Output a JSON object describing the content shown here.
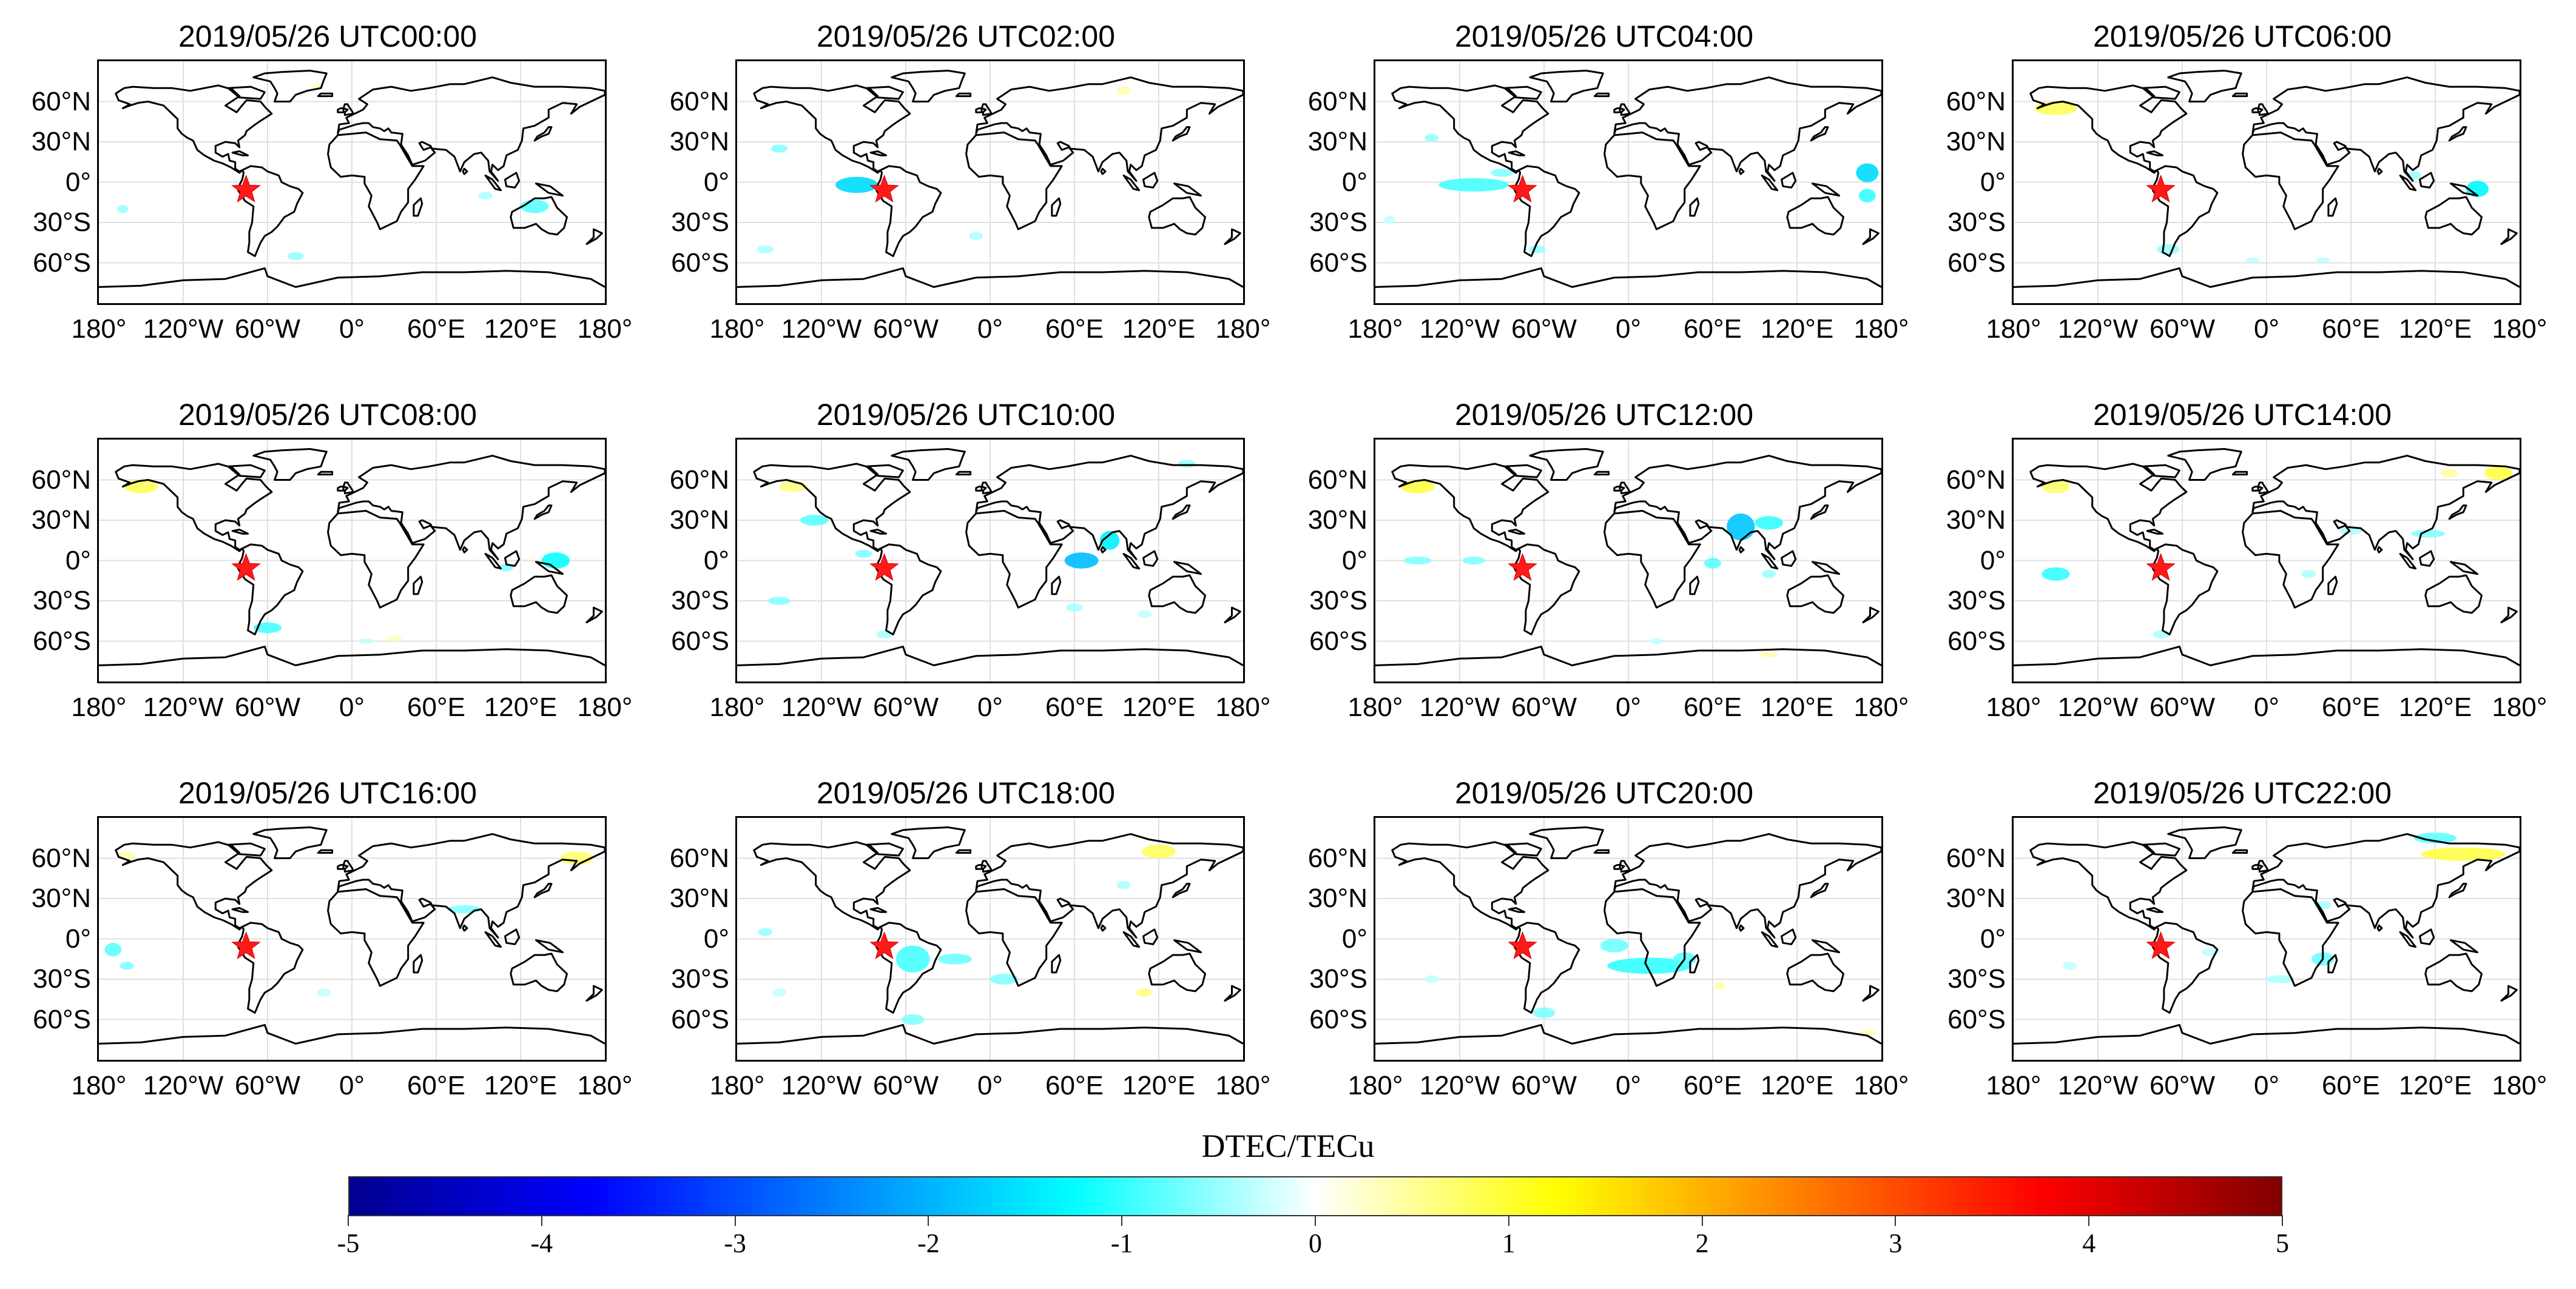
{
  "panels": [
    {
      "title": "2019/05/26 UTC00:00",
      "anomalies": [
        {
          "lon": -163,
          "lat": -20,
          "value": -0.5,
          "rlon": 4,
          "rlat": 3
        },
        {
          "lon": 130,
          "lat": -18,
          "value": -0.8,
          "rlon": 10,
          "rlat": 5
        },
        {
          "lon": 95,
          "lat": -10,
          "value": -0.4,
          "rlon": 5,
          "rlat": 3
        },
        {
          "lon": -40,
          "lat": -55,
          "value": -0.5,
          "rlon": 6,
          "rlat": 3
        },
        {
          "lon": -25,
          "lat": 72,
          "value": 0.3,
          "rlon": 5,
          "rlat": 2
        }
      ]
    },
    {
      "title": "2019/05/26 UTC02:00",
      "anomalies": [
        {
          "lon": -95,
          "lat": -2,
          "value": -1.6,
          "rlon": 15,
          "rlat": 6
        },
        {
          "lon": -150,
          "lat": 25,
          "value": -0.6,
          "rlon": 6,
          "rlat": 3
        },
        {
          "lon": 95,
          "lat": 68,
          "value": 0.4,
          "rlon": 5,
          "rlat": 3
        },
        {
          "lon": -10,
          "lat": -40,
          "value": -0.4,
          "rlon": 5,
          "rlat": 3
        },
        {
          "lon": -160,
          "lat": -50,
          "value": -0.4,
          "rlon": 6,
          "rlat": 3
        }
      ]
    },
    {
      "title": "2019/05/26 UTC04:00",
      "anomalies": [
        {
          "lon": -110,
          "lat": -2,
          "value": -0.9,
          "rlon": 25,
          "rlat": 5
        },
        {
          "lon": -90,
          "lat": 7,
          "value": -0.6,
          "rlon": 8,
          "rlat": 3
        },
        {
          "lon": 170,
          "lat": 7,
          "value": -1.6,
          "rlon": 8,
          "rlat": 7
        },
        {
          "lon": 170,
          "lat": -10,
          "value": -1.0,
          "rlon": 6,
          "rlat": 5
        },
        {
          "lon": -140,
          "lat": 33,
          "value": -0.5,
          "rlon": 5,
          "rlat": 3
        },
        {
          "lon": -170,
          "lat": -28,
          "value": -0.3,
          "rlon": 4,
          "rlat": 3
        },
        {
          "lon": -65,
          "lat": -50,
          "value": -0.5,
          "rlon": 6,
          "rlat": 3
        }
      ]
    },
    {
      "title": "2019/05/26 UTC06:00",
      "anomalies": [
        {
          "lon": -150,
          "lat": 55,
          "value": 0.8,
          "rlon": 15,
          "rlat": 5
        },
        {
          "lon": 150,
          "lat": -5,
          "value": -1.3,
          "rlon": 8,
          "rlat": 6
        },
        {
          "lon": 105,
          "lat": 5,
          "value": -0.5,
          "rlon": 5,
          "rlat": 3
        },
        {
          "lon": -70,
          "lat": -50,
          "value": -0.5,
          "rlon": 8,
          "rlat": 4
        },
        {
          "lon": -10,
          "lat": -58,
          "value": -0.3,
          "rlon": 5,
          "rlat": 2
        },
        {
          "lon": 40,
          "lat": -58,
          "value": -0.3,
          "rlon": 5,
          "rlat": 2
        }
      ]
    },
    {
      "title": "2019/05/26 UTC08:00",
      "anomalies": [
        {
          "lon": -150,
          "lat": 55,
          "value": 0.8,
          "rlon": 12,
          "rlat": 5
        },
        {
          "lon": 145,
          "lat": 0,
          "value": -1.2,
          "rlon": 10,
          "rlat": 6
        },
        {
          "lon": -60,
          "lat": -50,
          "value": -0.9,
          "rlon": 10,
          "rlat": 4
        },
        {
          "lon": 110,
          "lat": -5,
          "value": -0.6,
          "rlon": 5,
          "rlat": 3
        },
        {
          "lon": 30,
          "lat": -58,
          "value": 0.3,
          "rlon": 6,
          "rlat": 2
        },
        {
          "lon": 10,
          "lat": -60,
          "value": -0.3,
          "rlon": 5,
          "rlat": 2
        }
      ]
    },
    {
      "title": "2019/05/26 UTC10:00",
      "anomalies": [
        {
          "lon": 65,
          "lat": 0,
          "value": -1.9,
          "rlon": 12,
          "rlat": 6
        },
        {
          "lon": 85,
          "lat": 15,
          "value": -1.4,
          "rlon": 7,
          "rlat": 7
        },
        {
          "lon": -125,
          "lat": 30,
          "value": -0.8,
          "rlon": 10,
          "rlat": 4
        },
        {
          "lon": -150,
          "lat": -30,
          "value": -0.6,
          "rlon": 8,
          "rlat": 3
        },
        {
          "lon": -140,
          "lat": 55,
          "value": 0.6,
          "rlon": 10,
          "rlat": 4
        },
        {
          "lon": -90,
          "lat": 5,
          "value": -0.6,
          "rlon": 6,
          "rlat": 3
        },
        {
          "lon": 140,
          "lat": 72,
          "value": -0.5,
          "rlon": 6,
          "rlat": 3
        },
        {
          "lon": 60,
          "lat": -35,
          "value": -0.4,
          "rlon": 6,
          "rlat": 3
        },
        {
          "lon": 110,
          "lat": -40,
          "value": -0.3,
          "rlon": 5,
          "rlat": 3
        },
        {
          "lon": -75,
          "lat": -55,
          "value": -0.4,
          "rlon": 6,
          "rlat": 3
        }
      ]
    },
    {
      "title": "2019/05/26 UTC12:00",
      "anomalies": [
        {
          "lon": 80,
          "lat": 25,
          "value": -1.8,
          "rlon": 10,
          "rlat": 10
        },
        {
          "lon": 100,
          "lat": 28,
          "value": -1.0,
          "rlon": 10,
          "rlat": 5
        },
        {
          "lon": 60,
          "lat": -2,
          "value": -0.8,
          "rlon": 6,
          "rlat": 4
        },
        {
          "lon": -150,
          "lat": 55,
          "value": 0.9,
          "rlon": 12,
          "rlat": 5
        },
        {
          "lon": -150,
          "lat": 0,
          "value": -0.6,
          "rlon": 10,
          "rlat": 3
        },
        {
          "lon": -110,
          "lat": 0,
          "value": -0.6,
          "rlon": 8,
          "rlat": 3
        },
        {
          "lon": 100,
          "lat": -10,
          "value": -0.5,
          "rlon": 5,
          "rlat": 3
        },
        {
          "lon": 100,
          "lat": -70,
          "value": 0.4,
          "rlon": 6,
          "rlat": 2
        },
        {
          "lon": 20,
          "lat": -60,
          "value": -0.3,
          "rlon": 5,
          "rlat": 2
        }
      ]
    },
    {
      "title": "2019/05/26 UTC14:00",
      "anomalies": [
        {
          "lon": -150,
          "lat": -10,
          "value": -1.0,
          "rlon": 10,
          "rlat": 5
        },
        {
          "lon": -150,
          "lat": 55,
          "value": 0.7,
          "rlon": 10,
          "rlat": 5
        },
        {
          "lon": 165,
          "lat": 65,
          "value": 0.9,
          "rlon": 10,
          "rlat": 5
        },
        {
          "lon": 130,
          "lat": 65,
          "value": 0.5,
          "rlon": 6,
          "rlat": 3
        },
        {
          "lon": 115,
          "lat": 20,
          "value": -0.6,
          "rlon": 12,
          "rlat": 3
        },
        {
          "lon": 60,
          "lat": 22,
          "value": -0.4,
          "rlon": 8,
          "rlat": 3
        },
        {
          "lon": -75,
          "lat": -55,
          "value": -0.4,
          "rlon": 6,
          "rlat": 3
        },
        {
          "lon": 30,
          "lat": -10,
          "value": -0.4,
          "rlon": 5,
          "rlat": 3
        }
      ]
    },
    {
      "title": "2019/05/26 UTC16:00",
      "anomalies": [
        {
          "lon": -170,
          "lat": -8,
          "value": -0.8,
          "rlon": 6,
          "rlat": 5
        },
        {
          "lon": -160,
          "lat": -20,
          "value": -0.6,
          "rlon": 5,
          "rlat": 3
        },
        {
          "lon": 160,
          "lat": 60,
          "value": 0.7,
          "rlon": 12,
          "rlat": 5
        },
        {
          "lon": 80,
          "lat": 22,
          "value": -0.6,
          "rlon": 12,
          "rlat": 3
        },
        {
          "lon": -160,
          "lat": 62,
          "value": 0.4,
          "rlon": 6,
          "rlat": 3
        },
        {
          "lon": -20,
          "lat": -40,
          "value": -0.3,
          "rlon": 5,
          "rlat": 3
        }
      ]
    },
    {
      "title": "2019/05/26 UTC18:00",
      "anomalies": [
        {
          "lon": -55,
          "lat": -15,
          "value": -0.9,
          "rlon": 12,
          "rlat": 10
        },
        {
          "lon": -25,
          "lat": -15,
          "value": -0.7,
          "rlon": 12,
          "rlat": 4
        },
        {
          "lon": 10,
          "lat": -30,
          "value": -0.6,
          "rlon": 10,
          "rlat": 4
        },
        {
          "lon": 120,
          "lat": 65,
          "value": 0.8,
          "rlon": 12,
          "rlat": 5
        },
        {
          "lon": 95,
          "lat": 40,
          "value": -0.4,
          "rlon": 5,
          "rlat": 3
        },
        {
          "lon": 110,
          "lat": -40,
          "value": 0.6,
          "rlon": 6,
          "rlat": 3
        },
        {
          "lon": -160,
          "lat": 5,
          "value": -0.5,
          "rlon": 5,
          "rlat": 3
        },
        {
          "lon": -55,
          "lat": -60,
          "value": -0.6,
          "rlon": 8,
          "rlat": 4
        },
        {
          "lon": -150,
          "lat": -40,
          "value": -0.3,
          "rlon": 5,
          "rlat": 3
        }
      ]
    },
    {
      "title": "2019/05/26 UTC20:00",
      "anomalies": [
        {
          "lon": 15,
          "lat": -20,
          "value": -1.0,
          "rlon": 30,
          "rlat": 6
        },
        {
          "lon": -10,
          "lat": -5,
          "value": -0.7,
          "rlon": 10,
          "rlat": 5
        },
        {
          "lon": 40,
          "lat": -15,
          "value": -0.8,
          "rlon": 8,
          "rlat": 5
        },
        {
          "lon": -60,
          "lat": -55,
          "value": -0.6,
          "rlon": 8,
          "rlat": 4
        },
        {
          "lon": 65,
          "lat": -35,
          "value": 0.4,
          "rlon": 4,
          "rlat": 3
        },
        {
          "lon": 170,
          "lat": -70,
          "value": 0.4,
          "rlon": 6,
          "rlat": 2
        },
        {
          "lon": -140,
          "lat": -30,
          "value": -0.3,
          "rlon": 5,
          "rlat": 3
        }
      ]
    },
    {
      "title": "2019/05/26 UTC22:00",
      "anomalies": [
        {
          "lon": 140,
          "lat": 63,
          "value": 0.9,
          "rlon": 30,
          "rlat": 5
        },
        {
          "lon": 120,
          "lat": 75,
          "value": -0.8,
          "rlon": 15,
          "rlat": 4
        },
        {
          "lon": 40,
          "lat": -15,
          "value": -0.7,
          "rlon": 8,
          "rlat": 5
        },
        {
          "lon": 10,
          "lat": -30,
          "value": -0.4,
          "rlon": 10,
          "rlat": 3
        },
        {
          "lon": 40,
          "lat": 25,
          "value": -0.4,
          "rlon": 6,
          "rlat": 3
        },
        {
          "lon": -40,
          "lat": -10,
          "value": -0.3,
          "rlon": 6,
          "rlat": 3
        },
        {
          "lon": -140,
          "lat": -20,
          "value": -0.3,
          "rlon": 5,
          "rlat": 3
        }
      ]
    }
  ],
  "epicenter": {
    "lon": -75.3,
    "lat": -5.8,
    "color": "#ff1a1a"
  },
  "map": {
    "lon_range": [
      -180,
      180
    ],
    "lat_range": [
      -90,
      90
    ],
    "grid": true,
    "land_fill": "none",
    "coast_color": "#000000"
  },
  "lat_ticks": [
    {
      "value": 60,
      "label": "60°N"
    },
    {
      "value": 30,
      "label": "30°N"
    },
    {
      "value": 0,
      "label": "0°"
    },
    {
      "value": -30,
      "label": "30°S"
    },
    {
      "value": -60,
      "label": "60°S"
    }
  ],
  "lon_ticks": [
    {
      "value": -180,
      "label": "180°"
    },
    {
      "value": -120,
      "label": "120°W"
    },
    {
      "value": -60,
      "label": "60°W"
    },
    {
      "value": 0,
      "label": "0°"
    },
    {
      "value": 60,
      "label": "60°E"
    },
    {
      "value": 120,
      "label": "120°E"
    },
    {
      "value": 180,
      "label": "180°"
    }
  ],
  "colorbar": {
    "title": "DTEC/TECu",
    "range": [
      -5,
      5
    ],
    "ticks": [
      "-5",
      "-4",
      "-3",
      "-2",
      "-1",
      "0",
      "1",
      "2",
      "3",
      "4",
      "5"
    ],
    "stops": [
      "#00008f",
      "#0000ff",
      "#0080ff",
      "#00ffff",
      "#ffffff",
      "#ffff00",
      "#ff8000",
      "#ff0000",
      "#800000"
    ]
  }
}
